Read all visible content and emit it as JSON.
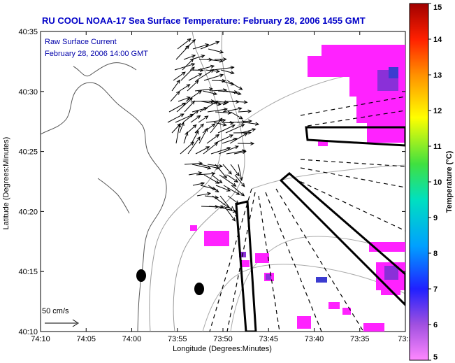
{
  "title": "RU COOL  NOAA-17  Sea Surface Temperature:  February 28, 2006 1455 GMT",
  "legend": {
    "line1": "Raw Surface Current",
    "line2": "February 28, 2006 14:00 GMT",
    "scale_label": "50 cm/s"
  },
  "axes": {
    "xlabel": "Longitude (Degrees:Minutes)",
    "ylabel": "Latitude (Degrees:Minutes)",
    "x_ticks": [
      "74:10",
      "74:05",
      "74:00",
      "73:55",
      "73:50",
      "73:45",
      "73:40",
      "73:35",
      "73:3"
    ],
    "y_ticks": [
      "40:35",
      "40:30",
      "40:25",
      "40:20",
      "40:15",
      "40:10"
    ]
  },
  "colorbar": {
    "label": "Temperature (°C)",
    "ticks": [
      "15",
      "14",
      "13",
      "12",
      "11",
      "10",
      "9",
      "8",
      "7",
      "6",
      "5"
    ],
    "range": [
      5,
      15
    ]
  },
  "colors": {
    "title": "#0000c8",
    "sst_patch": "#ff22ff",
    "sst_patch_dark": "#8a30d8",
    "sst_patch_blue": "#3c3cd0"
  }
}
